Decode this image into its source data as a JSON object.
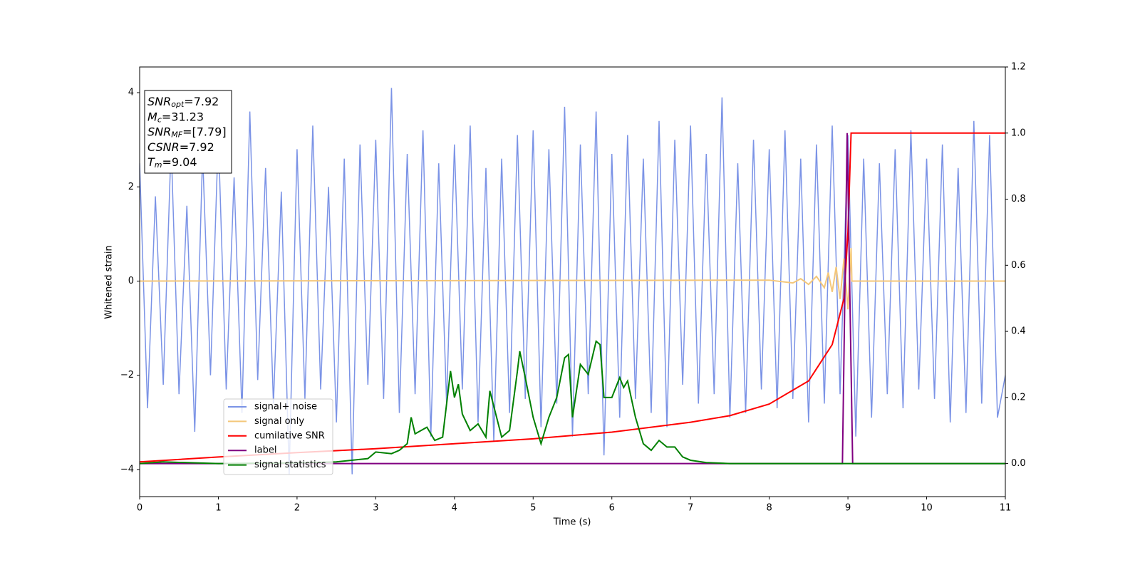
{
  "chart_data": {
    "type": "line",
    "xlabel": "Time (s)",
    "ylabel": "Whitened strain",
    "xlim": [
      0,
      11
    ],
    "xticks": [
      0,
      1,
      2,
      3,
      4,
      5,
      6,
      7,
      8,
      9,
      10,
      11
    ],
    "ylim": [
      -4.575,
      4.545
    ],
    "yticks": [
      {
        "value": -4,
        "label": "−4"
      },
      {
        "value": -2,
        "label": "−2"
      },
      0,
      2,
      4
    ],
    "y2lim": [
      -0.1,
      1.2
    ],
    "y2ticks": [
      {
        "value": 0,
        "label": "0.0"
      },
      {
        "value": 0.2,
        "label": "0.2"
      },
      {
        "value": 0.4,
        "label": "0.4"
      },
      {
        "value": 0.6,
        "label": "0.6"
      },
      {
        "value": 0.8,
        "label": "0.8"
      },
      {
        "value": 1,
        "label": "1.0"
      },
      {
        "value": 1.2,
        "label": "1.2"
      }
    ],
    "legend": true,
    "annotations": [
      {
        "symbol": "SNR",
        "subscript": "opt",
        "text": "=7.92"
      },
      {
        "symbol": "M",
        "subscript": "c",
        "text": "=31.23"
      },
      {
        "symbol": "SNR",
        "subscript": "MF",
        "text": "=[7.79]"
      },
      {
        "symbol": "CSNR",
        "text": "=7.92"
      },
      {
        "symbol": "T",
        "subscript": "m",
        "text": "=9.04"
      }
    ],
    "series": [
      {
        "name": "signal+ noise",
        "color": "#7b93e6",
        "x": [
          0,
          0.1,
          0.2,
          0.3,
          0.4,
          0.5,
          0.6,
          0.7,
          0.8,
          0.9,
          1,
          1.1,
          1.2,
          1.3,
          1.4,
          1.5,
          1.6,
          1.7,
          1.8,
          1.9,
          2,
          2.1,
          2.2,
          2.3,
          2.4,
          2.5,
          2.6,
          2.7,
          2.8,
          2.9,
          3,
          3.1,
          3.2,
          3.3,
          3.4,
          3.5,
          3.6,
          3.7,
          3.8,
          3.9,
          4,
          4.1,
          4.2,
          4.3,
          4.4,
          4.5,
          4.6,
          4.7,
          4.8,
          4.9,
          5,
          5.1,
          5.2,
          5.3,
          5.4,
          5.5,
          5.6,
          5.7,
          5.8,
          5.9,
          6,
          6.1,
          6.2,
          6.3,
          6.4,
          6.5,
          6.6,
          6.7,
          6.8,
          6.9,
          7,
          7.1,
          7.2,
          7.3,
          7.4,
          7.5,
          7.6,
          7.7,
          7.8,
          7.9,
          8,
          8.1,
          8.2,
          8.3,
          8.4,
          8.5,
          8.6,
          8.7,
          8.8,
          8.9,
          9,
          9.1,
          9.2,
          9.3,
          9.4,
          9.5,
          9.6,
          9.7,
          9.8,
          9.9,
          10,
          10.1,
          10.2,
          10.3,
          10.4,
          10.5,
          10.6,
          10.7,
          10.8,
          10.9,
          11
        ],
        "values": [
          2.5,
          -2.7,
          1.8,
          -2.2,
          2.9,
          -2.4,
          1.6,
          -3.2,
          2.7,
          -2.0,
          3.1,
          -2.3,
          2.2,
          -2.8,
          3.6,
          -2.1,
          2.4,
          -2.6,
          1.9,
          -4.1,
          2.8,
          -2.5,
          3.3,
          -2.3,
          2.0,
          -3.0,
          2.6,
          -4.1,
          2.9,
          -2.2,
          3.0,
          -2.5,
          4.1,
          -2.8,
          2.7,
          -2.4,
          3.2,
          -3.3,
          2.5,
          -2.6,
          2.9,
          -2.3,
          3.3,
          -3.0,
          2.4,
          -3.4,
          2.6,
          -2.8,
          3.1,
          -2.5,
          3.2,
          -3.1,
          2.8,
          -2.6,
          3.7,
          -3.3,
          2.9,
          -2.4,
          3.6,
          -3.7,
          2.7,
          -2.9,
          3.1,
          -2.5,
          2.6,
          -2.8,
          3.4,
          -3.1,
          3.0,
          -2.2,
          3.3,
          -2.6,
          2.7,
          -2.4,
          3.9,
          -2.9,
          2.5,
          -2.8,
          3.0,
          -2.3,
          2.8,
          -2.7,
          3.2,
          -2.5,
          2.6,
          -3.0,
          2.9,
          -2.6,
          3.3,
          -2.4,
          3.1,
          -3.3,
          2.6,
          -2.9,
          2.5,
          -2.4,
          2.8,
          -2.7,
          3.2,
          -2.3,
          2.6,
          -2.5,
          2.9,
          -3.0,
          2.4,
          -2.8,
          3.4,
          -2.6,
          3.1,
          -2.9,
          -2.0
        ]
      },
      {
        "name": "signal only",
        "color": "#f4c77a",
        "x": [
          0,
          8.0,
          8.3,
          8.4,
          8.5,
          8.6,
          8.7,
          8.75,
          8.8,
          8.85,
          8.9,
          8.95,
          9.0,
          9.04,
          9.05,
          11
        ],
        "values": [
          0,
          0.02,
          -0.04,
          0.05,
          -0.07,
          0.1,
          -0.14,
          0.18,
          -0.23,
          0.3,
          -0.38,
          0.48,
          -0.6,
          0.7,
          0,
          0
        ]
      },
      {
        "name": "cumilative SNR",
        "color": "#ff0000",
        "axis": "y2",
        "x": [
          0,
          1,
          2,
          3,
          4,
          5,
          6,
          7,
          7.5,
          8,
          8.5,
          8.8,
          8.95,
          9.0,
          9.02,
          9.04,
          11
        ],
        "values": [
          0.005,
          0.02,
          0.033,
          0.045,
          0.06,
          0.075,
          0.095,
          0.125,
          0.145,
          0.18,
          0.25,
          0.36,
          0.5,
          0.7,
          0.85,
          1.0,
          1.0
        ]
      },
      {
        "name": "label",
        "color": "#800080",
        "axis": "y2",
        "x": [
          0,
          8.93,
          8.99,
          9.06,
          11
        ],
        "values": [
          0,
          0,
          1,
          0,
          0
        ]
      },
      {
        "name": "signal statistics",
        "color": "#008000",
        "axis": "y2",
        "x": [
          0,
          0.3,
          1,
          2,
          2.5,
          2.9,
          3.0,
          3.2,
          3.3,
          3.4,
          3.45,
          3.5,
          3.65,
          3.75,
          3.85,
          3.95,
          4.0,
          4.05,
          4.1,
          4.2,
          4.3,
          4.4,
          4.45,
          4.6,
          4.7,
          4.8,
          4.83,
          4.9,
          5.0,
          5.1,
          5.2,
          5.3,
          5.4,
          5.45,
          5.5,
          5.6,
          5.7,
          5.8,
          5.85,
          5.9,
          6.0,
          6.1,
          6.15,
          6.2,
          6.3,
          6.4,
          6.5,
          6.6,
          6.7,
          6.8,
          6.9,
          7.0,
          7.2,
          7.5,
          8,
          11
        ],
        "values": [
          0,
          0.005,
          0,
          0.002,
          0.005,
          0.015,
          0.035,
          0.03,
          0.04,
          0.06,
          0.14,
          0.09,
          0.11,
          0.07,
          0.08,
          0.28,
          0.2,
          0.24,
          0.15,
          0.1,
          0.12,
          0.08,
          0.22,
          0.08,
          0.1,
          0.28,
          0.34,
          0.26,
          0.14,
          0.06,
          0.14,
          0.2,
          0.32,
          0.33,
          0.14,
          0.3,
          0.27,
          0.37,
          0.36,
          0.2,
          0.2,
          0.26,
          0.23,
          0.25,
          0.14,
          0.06,
          0.04,
          0.07,
          0.05,
          0.05,
          0.02,
          0.01,
          0.003,
          0,
          0,
          0
        ]
      }
    ]
  }
}
